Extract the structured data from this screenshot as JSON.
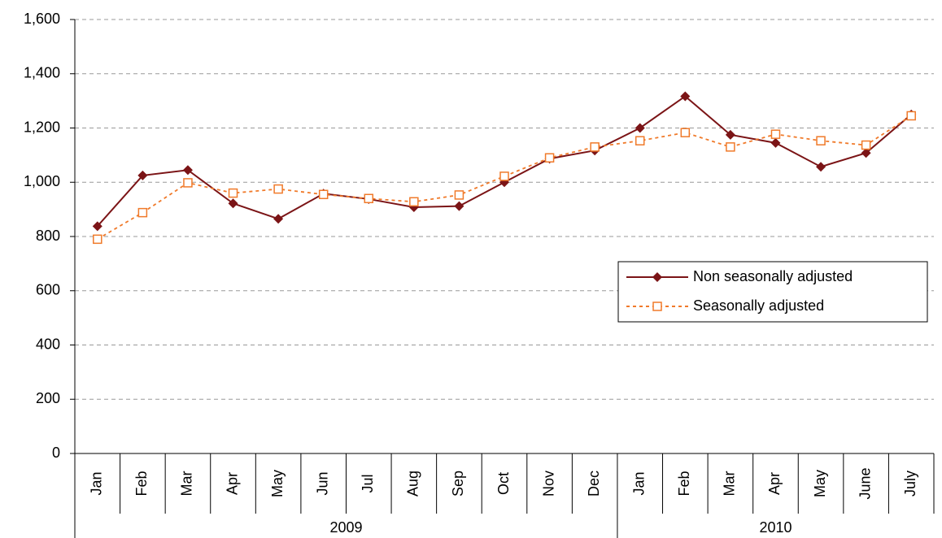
{
  "chart_data": {
    "type": "line",
    "categories": [
      "Jan",
      "Feb",
      "Mar",
      "Apr",
      "May",
      "Jun",
      "Jul",
      "Aug",
      "Sep",
      "Oct",
      "Nov",
      "Dec",
      "Jan",
      "Feb",
      "Mar",
      "Apr",
      "May",
      "June",
      "July"
    ],
    "groups": [
      {
        "label": "2009",
        "count": 12
      },
      {
        "label": "2010",
        "count": 7
      }
    ],
    "series": [
      {
        "name": "Non seasonally adjusted",
        "color": "#7b1416",
        "line_style": "solid",
        "marker": "diamond",
        "values": [
          838,
          1025,
          1045,
          922,
          865,
          958,
          938,
          908,
          912,
          1000,
          1087,
          1117,
          1200,
          1317,
          1175,
          1145,
          1057,
          1108,
          1250
        ]
      },
      {
        "name": "Seasonally adjusted",
        "color": "#f07a2a",
        "line_style": "dashed",
        "marker": "square",
        "values": [
          790,
          888,
          998,
          960,
          975,
          955,
          940,
          928,
          953,
          1022,
          1090,
          1130,
          1153,
          1183,
          1130,
          1177,
          1153,
          1137,
          1245
        ]
      }
    ],
    "ylim": [
      0,
      1600
    ],
    "yticks": [
      0,
      200,
      400,
      600,
      800,
      {
        "value": 1000,
        "label": "1,000"
      },
      {
        "value": 1200,
        "label": "1,200"
      },
      {
        "value": 1400,
        "label": "1,400"
      },
      {
        "value": 1600,
        "label": "1,600"
      }
    ],
    "grid": true,
    "legend_position": "right"
  }
}
